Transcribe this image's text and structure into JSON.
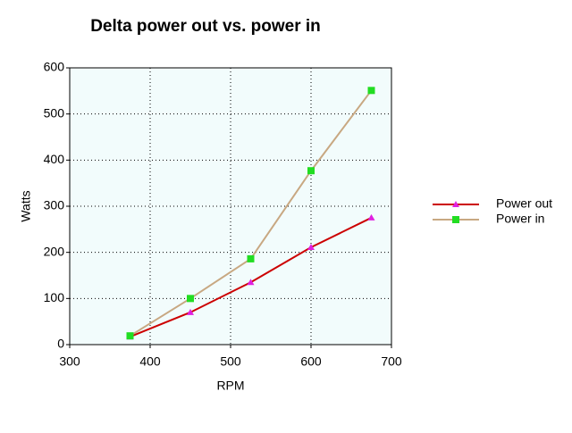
{
  "chart_data": {
    "type": "line",
    "title": "Delta power out vs. power in",
    "x_label": "RPM",
    "y_label": "Watts",
    "x": [
      375,
      450,
      525,
      600,
      675
    ],
    "series": [
      {
        "name": "Power out",
        "color": "#cc0000",
        "marker_color": "#e020e0",
        "marker": "triangle",
        "values": [
          17,
          70,
          135,
          211,
          275
        ]
      },
      {
        "name": "Power in",
        "color": "#c8a882",
        "marker_color": "#22dd22",
        "marker": "square",
        "values": [
          19,
          100,
          186,
          377,
          551
        ]
      }
    ],
    "xlim": [
      300,
      700
    ],
    "xticks": [
      300,
      400,
      500,
      600,
      700
    ],
    "ylim": [
      0,
      600
    ],
    "yticks": [
      0,
      100,
      200,
      300,
      400,
      500,
      600
    ],
    "grid": true,
    "legend": "right"
  }
}
